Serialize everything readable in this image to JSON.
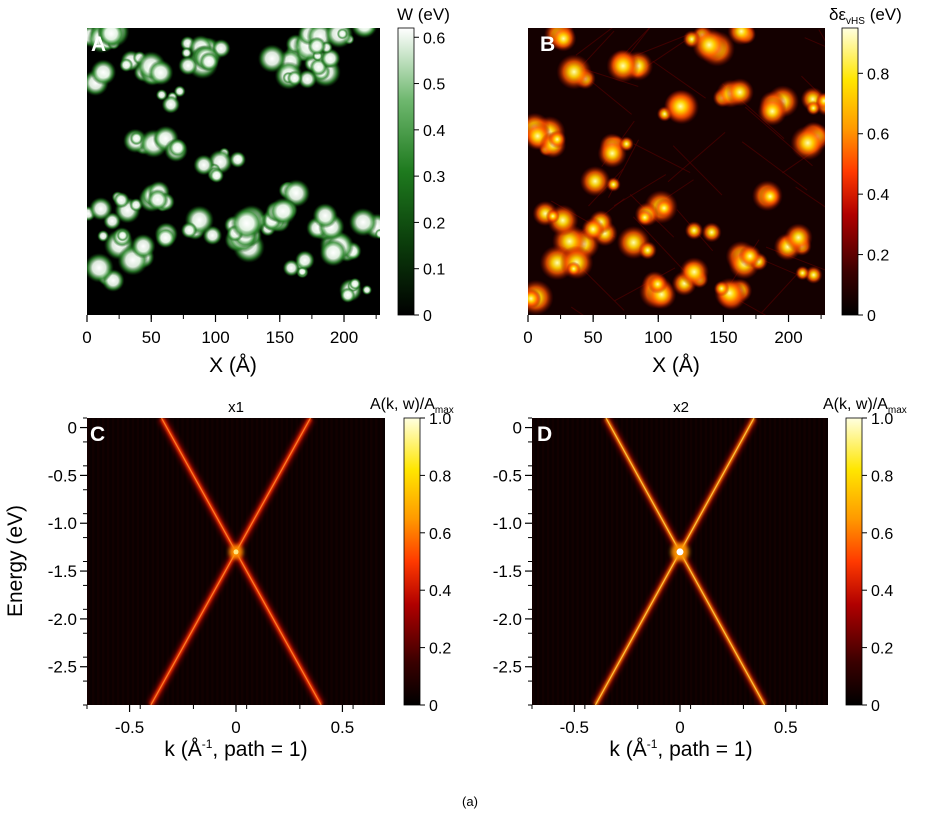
{
  "figure_label": "(a)",
  "chart_data": [
    {
      "panel": "A",
      "type": "heatmap",
      "title": "",
      "xlabel": "X (Å)",
      "ylabel": "",
      "xlim": [
        0,
        228
      ],
      "xticks": [
        0,
        50,
        100,
        150,
        200
      ],
      "colorbar_label": "W (eV)",
      "colorbar_range": [
        0,
        0.62
      ],
      "colorbar_ticks": [
        0,
        0.1,
        0.2,
        0.3,
        0.4,
        0.5,
        0.6
      ],
      "colormap": [
        "#000000",
        "#0b3d0b",
        "#1e7a1e",
        "#6fb86f",
        "#ffffff"
      ],
      "clusters": [
        [
          10,
          12
        ],
        [
          40,
          30
        ],
        [
          22,
          8
        ],
        [
          100,
          18
        ],
        [
          80,
          22
        ],
        [
          165,
          20
        ],
        [
          180,
          40
        ],
        [
          175,
          12
        ],
        [
          152,
          38
        ],
        [
          205,
          6
        ],
        [
          225,
          2
        ],
        [
          10,
          48
        ],
        [
          65,
          70
        ],
        [
          52,
          38
        ],
        [
          88,
          30
        ],
        [
          45,
          110
        ],
        [
          110,
          130
        ],
        [
          165,
          50
        ],
        [
          190,
          24
        ],
        [
          62,
          115
        ],
        [
          30,
          175
        ],
        [
          55,
          170
        ],
        [
          20,
          210
        ],
        [
          10,
          188
        ],
        [
          100,
          145
        ],
        [
          95,
          200
        ],
        [
          120,
          215
        ],
        [
          142,
          200
        ],
        [
          165,
          165
        ],
        [
          150,
          188
        ],
        [
          170,
          240
        ],
        [
          200,
          220
        ],
        [
          210,
          260
        ],
        [
          225,
          200
        ],
        [
          70,
          210
        ],
        [
          40,
          226
        ],
        [
          15,
          245
        ],
        [
          120,
          200
        ],
        [
          185,
          195
        ]
      ]
    },
    {
      "panel": "B",
      "type": "heatmap",
      "title": "",
      "xlabel": "X (Å)",
      "ylabel": "",
      "xlim": [
        0,
        228
      ],
      "xticks": [
        0,
        50,
        100,
        150,
        200
      ],
      "colorbar_label_main": "δε",
      "colorbar_label_sub": "vHS",
      "colorbar_label_unit": "(eV)",
      "colorbar_range": [
        0,
        0.95
      ],
      "colorbar_ticks": [
        0,
        0.2,
        0.4,
        0.6,
        0.8
      ],
      "colormap": [
        "#000000",
        "#3a0000",
        "#b00000",
        "#ff3a00",
        "#ff9a00",
        "#ffe600",
        "#ffffe0"
      ],
      "clusters": [
        [
          25,
          10
        ],
        [
          175,
          10
        ],
        [
          130,
          8
        ],
        [
          150,
          14
        ],
        [
          80,
          40
        ],
        [
          45,
          45
        ],
        [
          160,
          70
        ],
        [
          200,
          80
        ],
        [
          115,
          80
        ],
        [
          230,
          75
        ],
        [
          10,
          100
        ],
        [
          15,
          115
        ],
        [
          75,
          120
        ],
        [
          220,
          110
        ],
        [
          60,
          160
        ],
        [
          185,
          165
        ],
        [
          40,
          210
        ],
        [
          60,
          200
        ],
        [
          100,
          185
        ],
        [
          140,
          200
        ],
        [
          30,
          235
        ],
        [
          210,
          215
        ],
        [
          175,
          230
        ],
        [
          130,
          250
        ],
        [
          220,
          250
        ],
        [
          10,
          275
        ],
        [
          100,
          260
        ],
        [
          160,
          265
        ],
        [
          90,
          220
        ],
        [
          20,
          190
        ]
      ]
    },
    {
      "panel": "C",
      "type": "heatmap",
      "title": "x1",
      "xlabel_main": "k (Å",
      "xlabel_sup": "-1",
      "xlabel_rest": ", path = 1)",
      "ylabel": "Energy (eV)",
      "xlim": [
        -0.7,
        0.7
      ],
      "ylim": [
        -2.9,
        0.1
      ],
      "xticks": [
        -0.5,
        0,
        0.5
      ],
      "yticks": [
        0,
        -0.5,
        -1.0,
        -1.5,
        -2.0,
        -2.5
      ],
      "colorbar_label_main": "A(k, w)/A",
      "colorbar_label_sub": "max",
      "colorbar_range": [
        0,
        1.0
      ],
      "colorbar_ticks": [
        0,
        0.2,
        0.4,
        0.6,
        0.8,
        1.0
      ],
      "colormap": [
        "#000000",
        "#3a0000",
        "#b00000",
        "#ff3a00",
        "#ff9a00",
        "#ffe600",
        "#ffffe0"
      ],
      "dirac_point": {
        "k": 0.0,
        "E": -1.3
      },
      "band_slope_eV_per_invA": 4.0,
      "peak_intensity": 0.6
    },
    {
      "panel": "D",
      "type": "heatmap",
      "title": "x2",
      "xlabel_main": "k (Å",
      "xlabel_sup": "-1",
      "xlabel_rest": ", path = 1)",
      "ylabel": "",
      "xlim": [
        -0.7,
        0.7
      ],
      "ylim": [
        -2.9,
        0.1
      ],
      "xticks": [
        -0.5,
        0,
        0.5
      ],
      "yticks": [
        0,
        -0.5,
        -1.0,
        -1.5,
        -2.0,
        -2.5
      ],
      "colorbar_label_main": "A(k, w)/A",
      "colorbar_label_sub": "max",
      "colorbar_range": [
        0,
        1.0
      ],
      "colorbar_ticks": [
        0,
        0.2,
        0.4,
        0.6,
        0.8,
        1.0
      ],
      "colormap": [
        "#000000",
        "#3a0000",
        "#b00000",
        "#ff3a00",
        "#ff9a00",
        "#ffe600",
        "#ffffe0"
      ],
      "dirac_point": {
        "k": 0.0,
        "E": -1.3
      },
      "band_slope_eV_per_invA": 4.0,
      "peak_intensity": 1.0
    }
  ]
}
